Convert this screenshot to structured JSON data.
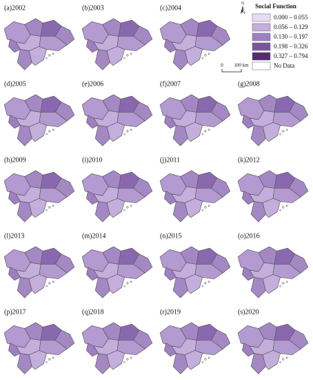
{
  "panels": [
    "(a)2002",
    "(b)2003",
    "(c)2004",
    "(d)2005",
    "(e)2006",
    "(f)2007",
    "(g)2008",
    "(h)2009",
    "(i)2010",
    "(j)2011",
    "(k)2012",
    "(l)2013",
    "(m)2014",
    "(n)2015",
    "(o)2016",
    "(p)2017",
    "(q)2018",
    "(r)2019",
    "(s)2020"
  ],
  "legend": {
    "title": "Social Function",
    "items": [
      {
        "label": "0.000 – 0.055",
        "color": "#e8dcf2"
      },
      {
        "label": "0.056 – 0.129",
        "color": "#c4aedb"
      },
      {
        "label": "0.130 – 0.197",
        "color": "#9e7fc0"
      },
      {
        "label": "0.198 – 0.326",
        "color": "#7a559f"
      },
      {
        "label": "0.327 – 0.794",
        "color": "#55296f"
      },
      {
        "label": "No Data",
        "color": "#ffffff"
      }
    ]
  },
  "north": "N",
  "scale": [
    "0",
    "100 km"
  ]
}
